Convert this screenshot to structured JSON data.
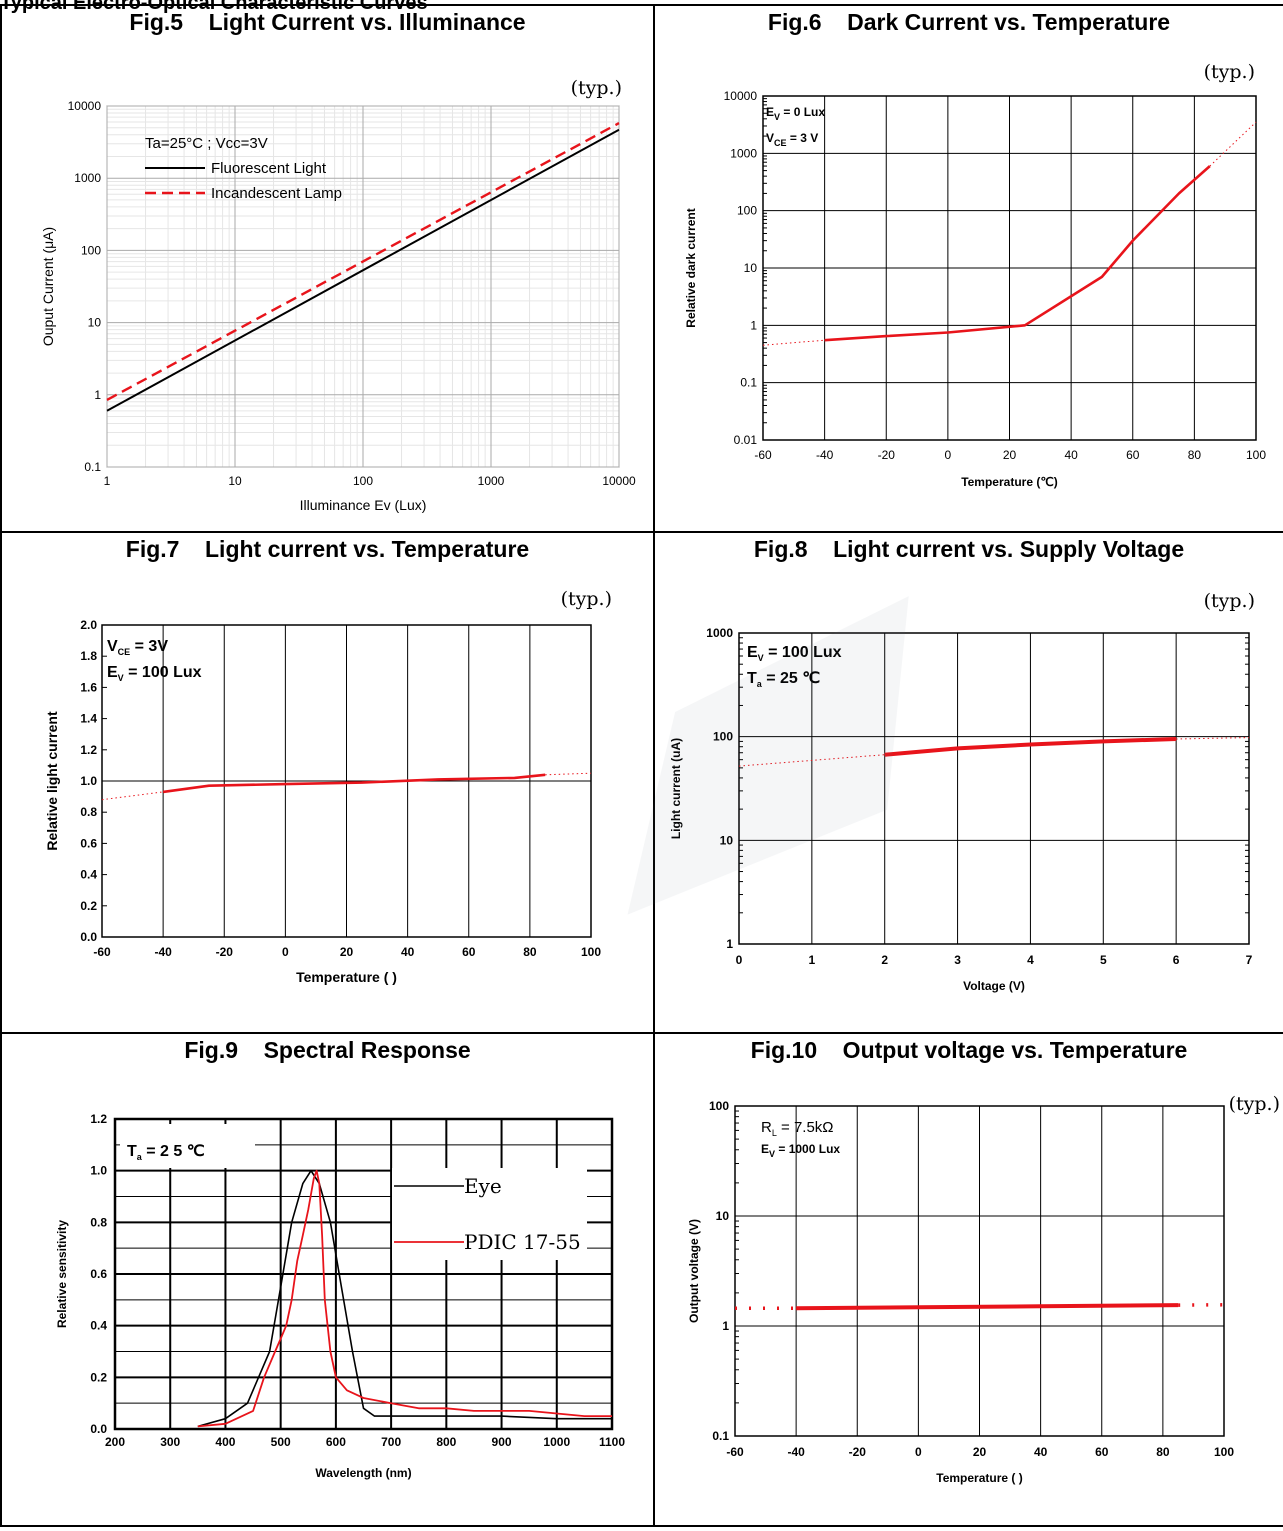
{
  "page": {
    "heading": "Typical Electro-Optical Characteristic Curves",
    "typ_label": "(typ.)",
    "colors": {
      "curve_red": "#e8141b",
      "curve_black": "#000000",
      "grid": "#000000"
    }
  },
  "figures": {
    "fig5": {
      "title": "Fig.5    Light Current vs. Illuminance",
      "annotations": {
        "condition": "Ta=25°C ; Vcc=3V"
      },
      "x_ticks": [
        "1",
        "10",
        "100",
        "1000",
        "10000"
      ],
      "y_ticks": [
        "0.1",
        "1",
        "10",
        "100",
        "1000",
        "10000"
      ]
    },
    "fig6": {
      "title": "Fig.6    Dark Current vs. Temperature",
      "annotations": {
        "ev_main": "E",
        "ev_sub": "V",
        "ev_rest": " = 0 Lux",
        "vce_main": "V",
        "vce_sub": "CE",
        "vce_rest": " = 3 V"
      },
      "x_ticks": [
        "-60",
        "-40",
        "-20",
        "0",
        "20",
        "40",
        "60",
        "80",
        "100"
      ],
      "y_ticks": [
        "0.01",
        "0.1",
        "1",
        "10",
        "100",
        "1000",
        "10000"
      ]
    },
    "fig7": {
      "title": "Fig.7    Light current vs. Temperature",
      "annotations": {
        "vce_main": "V",
        "vce_sub": "CE",
        "vce_rest": " = 3V",
        "ev_main": "E",
        "ev_sub": "V",
        "ev_rest": " = 100 Lux"
      },
      "x_ticks": [
        "-60",
        "-40",
        "-20",
        "0",
        "20",
        "40",
        "60",
        "80",
        "100"
      ],
      "y_ticks": [
        "0.0",
        "0.2",
        "0.4",
        "0.6",
        "0.8",
        "1.0",
        "1.2",
        "1.4",
        "1.6",
        "1.8",
        "2.0"
      ]
    },
    "fig8": {
      "title": "Fig.8    Light current vs. Supply Voltage",
      "annotations": {
        "ev_main": "E",
        "ev_sub": "V",
        "ev_rest": " = 100 Lux",
        "ta_main": "T",
        "ta_sub": "a",
        "ta_rest": " = 25 ℃"
      },
      "x_ticks": [
        "0",
        "1",
        "2",
        "3",
        "4",
        "5",
        "6",
        "7"
      ],
      "y_ticks": [
        "1",
        "10",
        "100",
        "1000"
      ]
    },
    "fig9": {
      "title": "Fig.9    Spectral Response",
      "annotations": {
        "ta_main": "T",
        "ta_sub": "a",
        "ta_rest": " = 2 5  ℃"
      },
      "x_ticks": [
        "200",
        "300",
        "400",
        "500",
        "600",
        "700",
        "800",
        "900",
        "1000",
        "1100"
      ],
      "y_ticks": [
        "0.0",
        "0.2",
        "0.4",
        "0.6",
        "0.8",
        "1.0",
        "1.2"
      ]
    },
    "fig10": {
      "title": "Fig.10    Output voltage vs. Temperature",
      "annotations": {
        "rl_main": "R",
        "rl_sub": "L",
        "rl_rest": " = 7.5kΩ",
        "ev_main": "E",
        "ev_sub": "V",
        "ev_rest": " = 1000 Lux"
      },
      "x_ticks": [
        "-60",
        "-40",
        "-20",
        "0",
        "20",
        "40",
        "60",
        "80",
        "100"
      ],
      "y_ticks": [
        "0.1",
        "1",
        "10",
        "100"
      ]
    }
  },
  "chart_data": [
    {
      "id": "fig5",
      "type": "line",
      "title": "Fig.5    Light Current vs. Illuminance",
      "xlabel": "Illuminance Ev (Lux)",
      "ylabel": "Ouput Current (μA)",
      "xscale": "log",
      "yscale": "log",
      "xlim": [
        1,
        10000
      ],
      "ylim": [
        0.1,
        10000
      ],
      "grid": true,
      "legend": "top-left",
      "series": [
        {
          "name": "Fluorescent Light",
          "style": "solid",
          "color": "#000000",
          "x": [
            1,
            10000
          ],
          "y": [
            0.6,
            4700
          ]
        },
        {
          "name": "Incandescent Lamp",
          "style": "dashed",
          "color": "#e8141b",
          "x": [
            1,
            10000
          ],
          "y": [
            0.85,
            5800
          ]
        }
      ]
    },
    {
      "id": "fig6",
      "type": "line",
      "title": "Fig.6    Dark Current vs. Temperature",
      "xlabel": "Temperature (℃)",
      "ylabel": "Relative dark current",
      "yscale": "log",
      "xlim": [
        -60,
        100
      ],
      "ylim": [
        0.01,
        10000
      ],
      "grid": true,
      "series": [
        {
          "style": "solid",
          "color": "#e8141b",
          "x": [
            -40,
            -20,
            0,
            25,
            50,
            60,
            75,
            85
          ],
          "y": [
            0.55,
            0.65,
            0.75,
            1.0,
            7.0,
            30,
            200,
            600
          ]
        },
        {
          "style": "dotted",
          "color": "#e8141b",
          "x": [
            -60,
            -40
          ],
          "y": [
            0.45,
            0.55
          ]
        },
        {
          "style": "dotted",
          "color": "#e8141b",
          "x": [
            85,
            100
          ],
          "y": [
            600,
            3500
          ]
        }
      ]
    },
    {
      "id": "fig7",
      "type": "line",
      "title": "Fig.7    Light current vs. Temperature",
      "xlabel": "Temperature (   )",
      "ylabel": "Relative light current",
      "xlim": [
        -60,
        100
      ],
      "ylim": [
        0.0,
        2.0
      ],
      "grid": true,
      "series": [
        {
          "style": "solid",
          "color": "#e8141b",
          "x": [
            -40,
            -25,
            0,
            25,
            50,
            75,
            85
          ],
          "y": [
            0.93,
            0.97,
            0.98,
            0.99,
            1.01,
            1.02,
            1.04
          ]
        },
        {
          "style": "dotted",
          "color": "#e8141b",
          "x": [
            -60,
            -40
          ],
          "y": [
            0.88,
            0.93
          ]
        },
        {
          "style": "dotted",
          "color": "#e8141b",
          "x": [
            85,
            100
          ],
          "y": [
            1.04,
            1.05
          ]
        }
      ]
    },
    {
      "id": "fig8",
      "type": "line",
      "title": "Fig.8    Light current vs. Supply Voltage",
      "xlabel": "Voltage (V)",
      "ylabel": "Light current (uA)",
      "yscale": "log",
      "xlim": [
        0,
        7
      ],
      "ylim": [
        1,
        1000
      ],
      "grid": true,
      "series": [
        {
          "style": "solid",
          "color": "#e8141b",
          "x": [
            2,
            3,
            4,
            5,
            6
          ],
          "y": [
            67,
            77,
            84,
            90,
            95
          ]
        },
        {
          "style": "dotted",
          "color": "#e8141b",
          "x": [
            0,
            2
          ],
          "y": [
            52,
            67
          ]
        },
        {
          "style": "dotted",
          "color": "#e8141b",
          "x": [
            6,
            7
          ],
          "y": [
            95,
            98
          ]
        }
      ]
    },
    {
      "id": "fig9",
      "type": "line",
      "title": "Fig.9    Spectral Response",
      "xlabel": "Wavelength (nm)",
      "ylabel": "Relative sensitivity",
      "xlim": [
        200,
        1100
      ],
      "ylim": [
        0.0,
        1.2
      ],
      "grid": true,
      "legend": "top-right",
      "series": [
        {
          "name": "Eye",
          "color": "#000000",
          "x": [
            350,
            400,
            440,
            480,
            500,
            520,
            540,
            555,
            570,
            590,
            610,
            630,
            650,
            670,
            690,
            720,
            800,
            900,
            1000,
            1100
          ],
          "y": [
            0.01,
            0.04,
            0.1,
            0.3,
            0.55,
            0.8,
            0.95,
            1.0,
            0.95,
            0.8,
            0.55,
            0.3,
            0.08,
            0.05,
            0.05,
            0.05,
            0.05,
            0.05,
            0.04,
            0.04
          ]
        },
        {
          "name": "PDIC 17-55",
          "color": "#e8141b",
          "x": [
            350,
            400,
            450,
            470,
            490,
            500,
            510,
            520,
            530,
            540,
            550,
            560,
            565,
            570,
            575,
            580,
            590,
            600,
            620,
            650,
            700,
            750,
            800,
            850,
            900,
            950,
            1000,
            1050,
            1100
          ],
          "y": [
            0.01,
            0.02,
            0.07,
            0.2,
            0.3,
            0.35,
            0.4,
            0.5,
            0.65,
            0.75,
            0.85,
            0.97,
            1.0,
            0.95,
            0.75,
            0.5,
            0.3,
            0.2,
            0.15,
            0.12,
            0.1,
            0.08,
            0.08,
            0.07,
            0.07,
            0.07,
            0.06,
            0.05,
            0.05
          ]
        }
      ]
    },
    {
      "id": "fig10",
      "type": "line",
      "title": "Fig.10    Output voltage vs. Temperature",
      "xlabel": "Temperature (   )",
      "ylabel": "Output voltage (V)",
      "yscale": "log",
      "xlim": [
        -60,
        100
      ],
      "ylim": [
        0.1,
        100
      ],
      "grid": true,
      "series": [
        {
          "style": "solid",
          "color": "#e8141b",
          "x": [
            -40,
            0,
            40,
            85
          ],
          "y": [
            1.45,
            1.48,
            1.51,
            1.55
          ]
        },
        {
          "style": "dotted",
          "color": "#e8141b",
          "x": [
            -60,
            -40
          ],
          "y": [
            1.45,
            1.45
          ]
        },
        {
          "style": "dotted",
          "color": "#e8141b",
          "x": [
            85,
            100
          ],
          "y": [
            1.55,
            1.56
          ]
        }
      ]
    }
  ]
}
